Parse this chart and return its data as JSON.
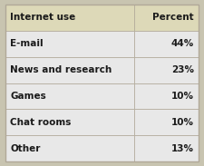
{
  "header": [
    "Internet use",
    "Percent"
  ],
  "rows": [
    [
      "E-mail",
      "44%"
    ],
    [
      "News and research",
      "23%"
    ],
    [
      "Games",
      "10%"
    ],
    [
      "Chat rooms",
      "10%"
    ],
    [
      "Other",
      "13%"
    ]
  ],
  "header_bg": "#ddd9b8",
  "row_bg": "#e8e8e8",
  "border_color": "#b0a898",
  "text_color": "#1a1a1a",
  "header_fontsize": 7.5,
  "row_fontsize": 7.5,
  "fig_bg": "#c8c4b0",
  "cell_bg": "#ebebeb"
}
